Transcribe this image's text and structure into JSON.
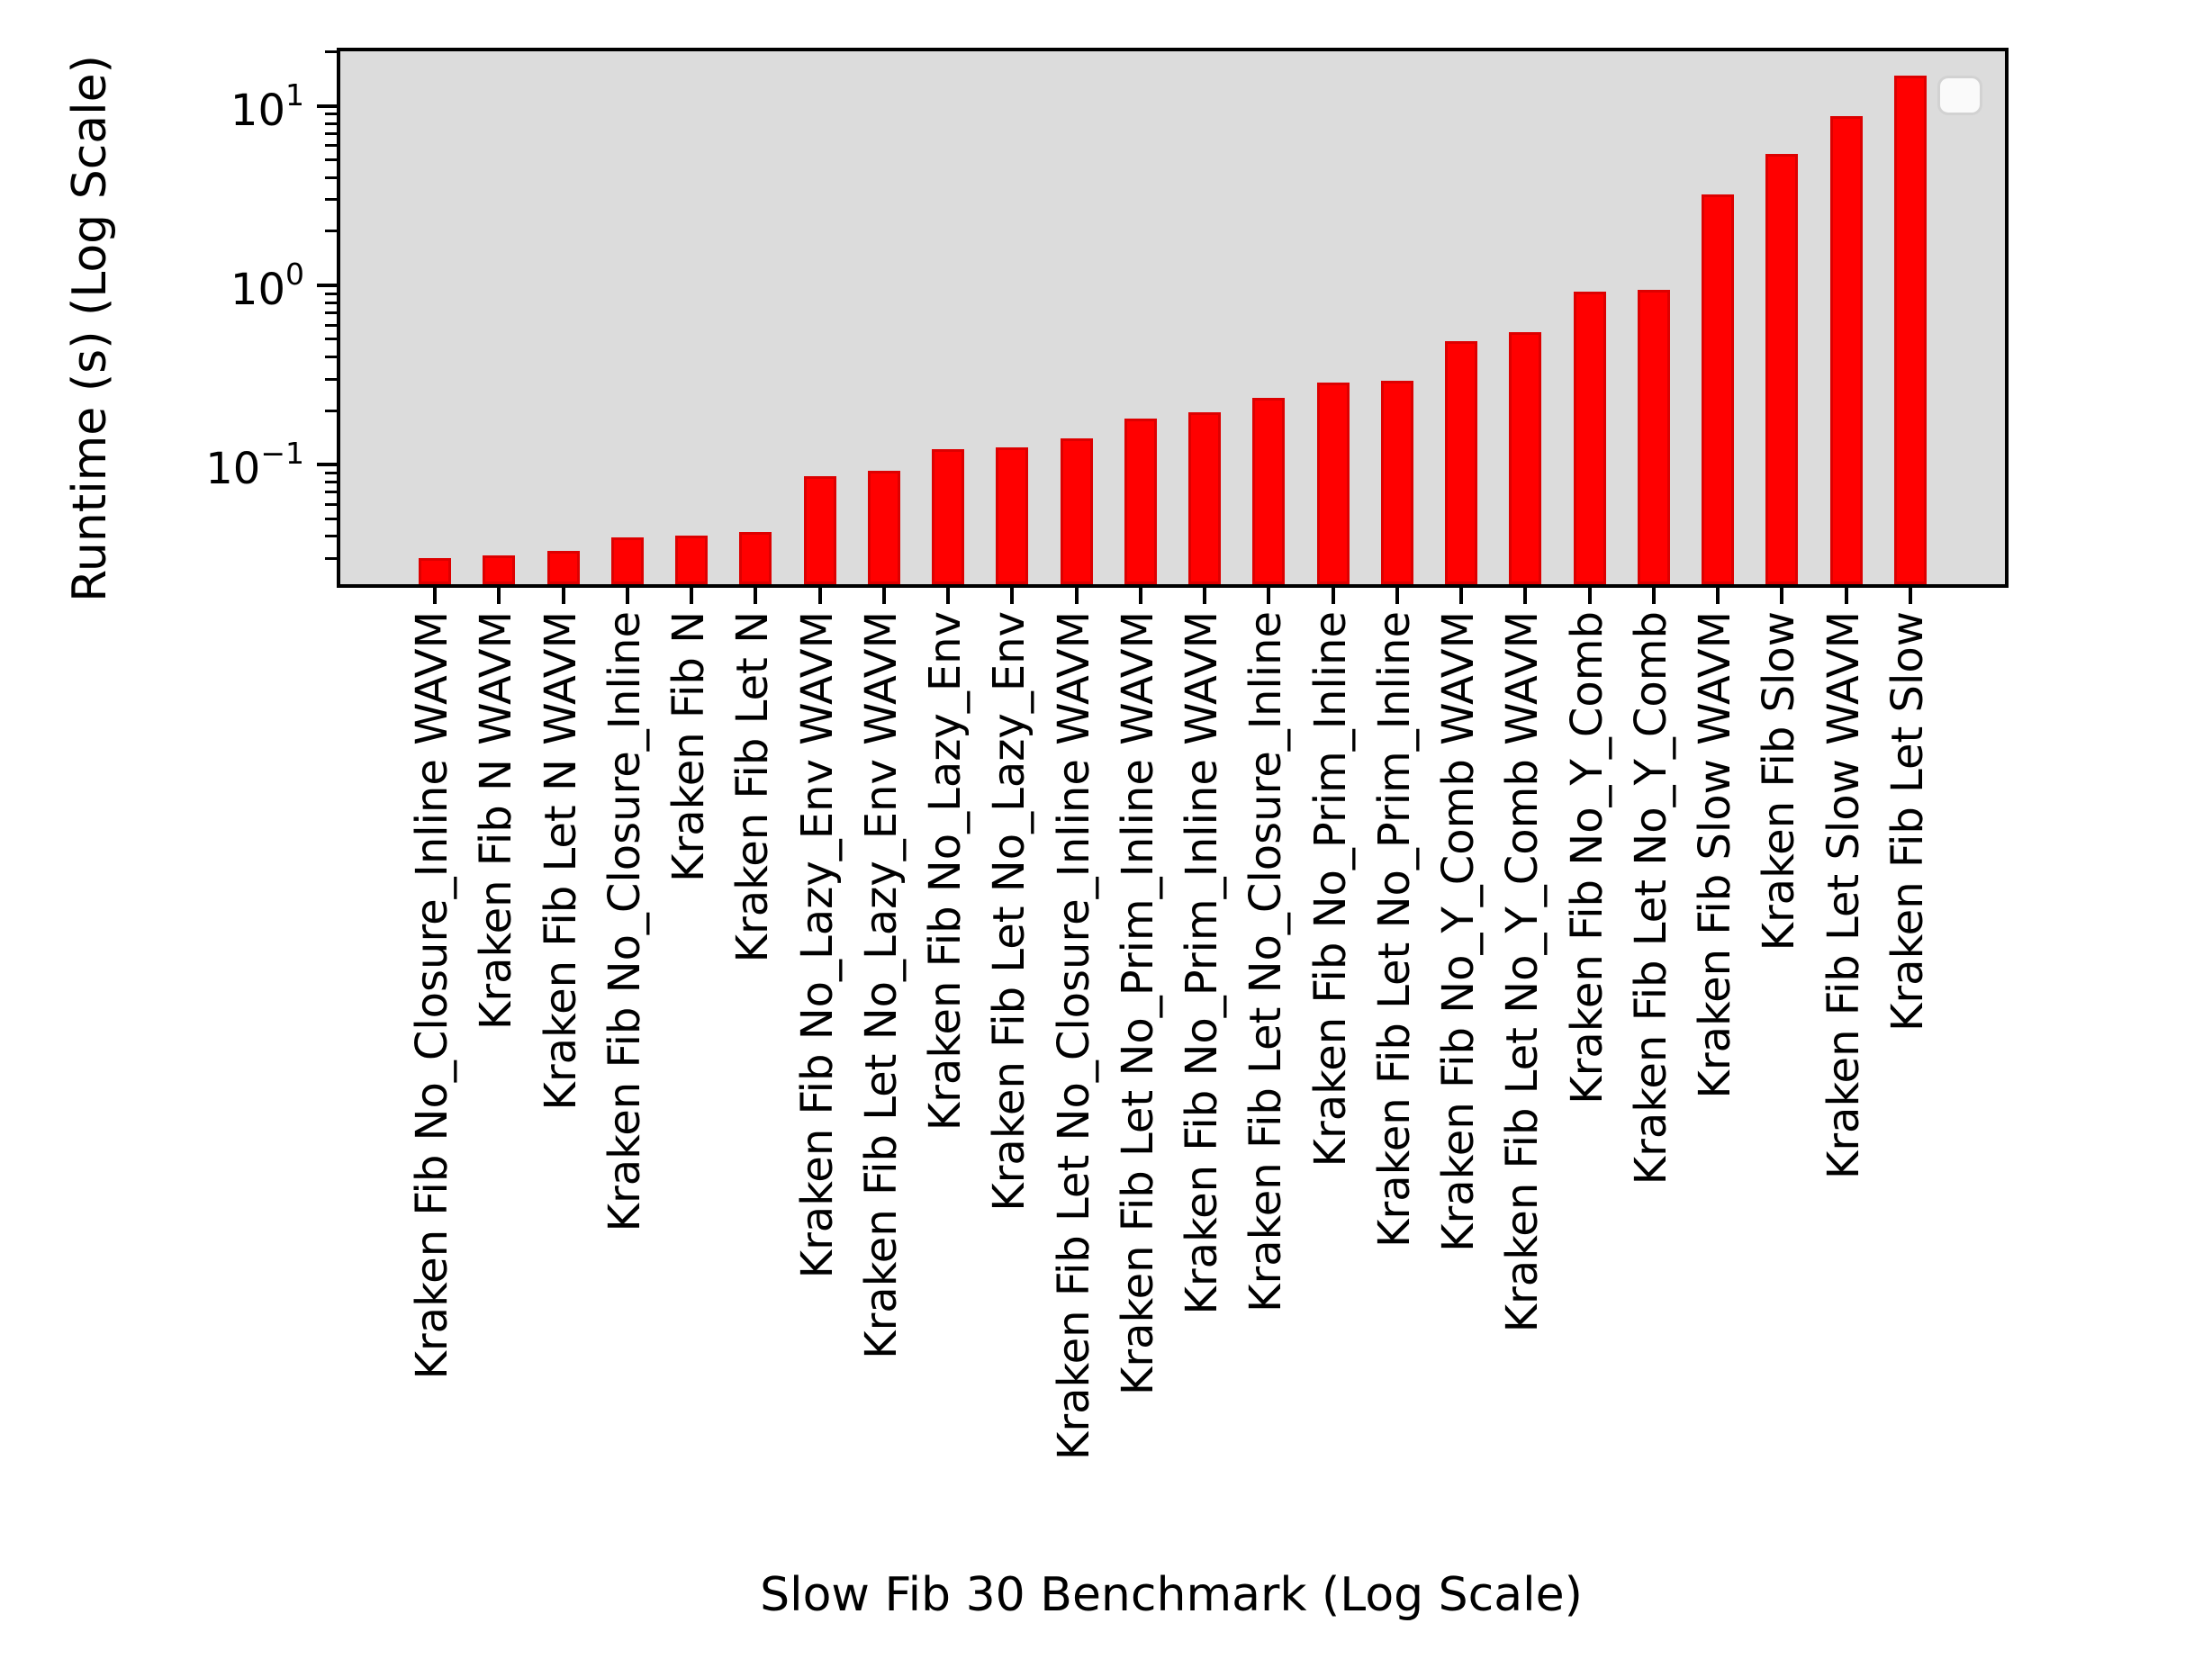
{
  "chart_data": {
    "type": "bar",
    "title": "",
    "xlabel": "Slow Fib 30 Benchmark (Log Scale)",
    "ylabel": "Runtime (s) (Log Scale)",
    "yscale": "log",
    "ylim": [
      0.0215,
      20.2
    ],
    "grid": false,
    "legend_position": "upper right",
    "legend_entries": [],
    "categories": [
      "Kraken Fib No_Closure_Inline WAVM",
      "Kraken Fib N WAVM",
      "Kraken Fib Let N WAVM",
      "Kraken Fib No_Closure_Inline",
      "Kraken Fib N",
      "Kraken Fib Let N",
      "Kraken Fib No_Lazy_Env WAVM",
      "Kraken Fib Let No_Lazy_Env WAVM",
      "Kraken Fib No_Lazy_Env",
      "Kraken Fib Let No_Lazy_Env",
      "Kraken Fib Let No_Closure_Inline WAVM",
      "Kraken Fib Let No_Prim_Inline WAVM",
      "Kraken Fib No_Prim_Inline WAVM",
      "Kraken Fib Let No_Closure_Inline",
      "Kraken Fib No_Prim_Inline",
      "Kraken Fib Let No_Prim_Inline",
      "Kraken Fib No_Y_Comb WAVM",
      "Kraken Fib Let No_Y_Comb WAVM",
      "Kraken Fib No_Y_Comb",
      "Kraken Fib Let No_Y_Comb",
      "Kraken Fib Slow WAVM",
      "Kraken Fib Slow",
      "Kraken Fib Let Slow WAVM",
      "Kraken Fib Let Slow"
    ],
    "values": [
      0.03,
      0.031,
      0.033,
      0.039,
      0.04,
      0.042,
      0.086,
      0.092,
      0.122,
      0.124,
      0.14,
      0.18,
      0.195,
      0.235,
      0.285,
      0.295,
      0.49,
      0.55,
      0.92,
      0.94,
      3.2,
      5.4,
      8.8,
      14.8
    ],
    "ytick_major": [
      {
        "value": 10,
        "base": "10",
        "exp": "1"
      },
      {
        "value": 1,
        "base": "10",
        "exp": "0"
      },
      {
        "value": 0.1,
        "base": "10",
        "exp": "−1"
      }
    ],
    "ytick_minor_values": [
      0.03,
      0.04,
      0.05,
      0.06,
      0.07,
      0.08,
      0.09,
      0.2,
      0.3,
      0.4,
      0.5,
      0.6,
      0.7,
      0.8,
      0.9,
      2,
      3,
      4,
      5,
      6,
      7,
      8,
      9,
      20
    ],
    "colors": {
      "bar_fill": "#ff0000",
      "bar_edge": "#dd0000",
      "plot_background": "#dcdcdc",
      "figure_background": "#ffffff",
      "axis": "#000000",
      "legend_fill": "#fafafa",
      "legend_border": "#d2d2d2"
    }
  }
}
